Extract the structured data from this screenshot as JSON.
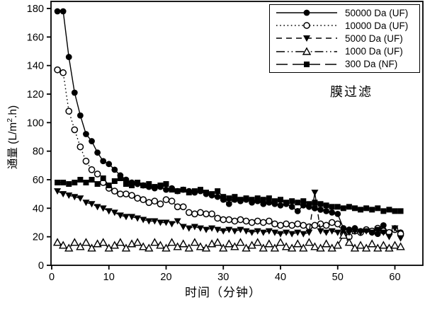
{
  "figure": {
    "xlabel": "时间（分钟）",
    "ylabel": {
      "prefix": "通量 (L/m",
      "sup": "2",
      "suffix": ".h)"
    },
    "annotation": "膜过滤"
  },
  "colors": {
    "foreground": "#000000",
    "background": "#ffffff"
  },
  "chart_data": {
    "type": "line",
    "title": "",
    "xlabel": "时间（分钟）",
    "ylabel": "通量 (L/m2.h)",
    "annotation": "膜过滤",
    "grid": false,
    "legend_position": "top-right",
    "xlim": [
      0,
      65
    ],
    "ylim": [
      0,
      185
    ],
    "xticks": [
      0,
      10,
      20,
      30,
      40,
      50,
      60
    ],
    "yticks": [
      0,
      20,
      40,
      60,
      80,
      100,
      120,
      140,
      160,
      180
    ],
    "x_minutes": {
      "start": 1,
      "step": 1,
      "count": 61
    },
    "series": [
      {
        "name": "50000 Da (UF)",
        "marker": "filled-circle",
        "line": "solid",
        "color": "#000000",
        "values": [
          178,
          178,
          146,
          121,
          105,
          92,
          87,
          79,
          73,
          71,
          67,
          63,
          60,
          58,
          57,
          56,
          55,
          54,
          55,
          53,
          54,
          52,
          53,
          52,
          51,
          52,
          50,
          49,
          48,
          46,
          43,
          46,
          45,
          46,
          44,
          45,
          43,
          44,
          43,
          42,
          43,
          41,
          38,
          42,
          41,
          40,
          39,
          38,
          37,
          36,
          26,
          25,
          26,
          24,
          25,
          23,
          22,
          28,
          22,
          26,
          23
        ]
      },
      {
        "name": "10000 Da (UF)",
        "marker": "open-circle",
        "line": "dotted",
        "color": "#000000",
        "values": [
          137,
          135,
          108,
          95,
          83,
          73,
          67,
          64,
          58,
          54,
          52,
          50,
          50,
          49,
          47,
          46,
          44,
          45,
          43,
          46,
          45,
          41,
          41,
          37,
          36,
          37,
          36,
          36,
          33,
          32,
          32,
          31,
          32,
          31,
          30,
          31,
          30,
          31,
          29,
          28,
          29,
          28,
          29,
          28,
          27,
          28,
          29,
          28,
          30,
          29,
          22,
          20,
          24,
          23,
          25,
          24,
          26,
          24,
          23,
          25,
          22
        ]
      },
      {
        "name": "5000 Da (UF)",
        "marker": "filled-triangle-down",
        "line": "dashed",
        "color": "#000000",
        "values": [
          52,
          50,
          49,
          48,
          47,
          44,
          43,
          41,
          40,
          38,
          37,
          35,
          34,
          34,
          33,
          32,
          31,
          31,
          30,
          30,
          29,
          31,
          27,
          26,
          27,
          26,
          25,
          26,
          25,
          24,
          25,
          24,
          25,
          24,
          23,
          24,
          23,
          24,
          23,
          22,
          23,
          22,
          23,
          22,
          23,
          51,
          24,
          23,
          24,
          23,
          22,
          23,
          24,
          23,
          24,
          23,
          25,
          23,
          20,
          26,
          19
        ]
      },
      {
        "name": "1000 Da (UF)",
        "marker": "open-triangle-up",
        "line": "dash-dot-dot",
        "color": "#000000",
        "values": [
          16,
          14,
          12,
          16,
          13,
          16,
          12,
          15,
          16,
          12,
          14,
          16,
          12,
          15,
          16,
          13,
          12,
          16,
          14,
          12,
          16,
          13,
          15,
          12,
          16,
          13,
          12,
          15,
          16,
          12,
          15,
          13,
          16,
          12,
          14,
          16,
          12,
          15,
          12,
          16,
          13,
          12,
          15,
          12,
          16,
          13,
          12,
          15,
          12,
          14,
          21,
          16,
          12,
          14,
          12,
          15,
          12,
          14,
          12,
          14,
          13
        ]
      },
      {
        "name": "300 Da (NF)",
        "marker": "filled-square",
        "line": "long-dash",
        "color": "#000000",
        "values": [
          58,
          58,
          57,
          58,
          60,
          58,
          60,
          57,
          61,
          56,
          59,
          61,
          57,
          56,
          58,
          56,
          57,
          55,
          56,
          57,
          53,
          52,
          53,
          51,
          52,
          53,
          51,
          50,
          52,
          48,
          47,
          48,
          46,
          47,
          46,
          47,
          46,
          47,
          45,
          46,
          44,
          45,
          44,
          45,
          43,
          44,
          43,
          42,
          41,
          41,
          40,
          41,
          40,
          39,
          40,
          39,
          40,
          38,
          39,
          38,
          38
        ]
      }
    ]
  }
}
